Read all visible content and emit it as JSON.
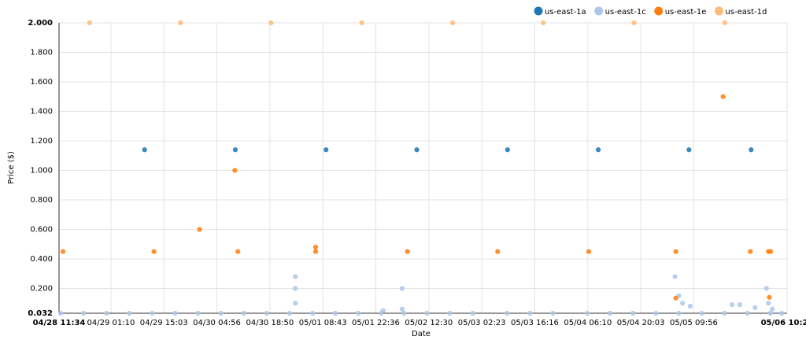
{
  "chart_data": {
    "type": "scatter",
    "x_label": "Date",
    "y_label": "Price ($)",
    "xlim": [
      "04/28 11:34",
      "05/06 10:24"
    ],
    "xticks": [
      "04/28 11:34",
      "04/29 01:10",
      "04/29 15:03",
      "04/30 04:56",
      "04/30 18:50",
      "05/01 08:43",
      "05/01 22:36",
      "05/02 12:30",
      "05/03 02:23",
      "05/03 16:16",
      "05/04 06:10",
      "05/04 20:03",
      "05/05 09:56",
      "05/06 10:24"
    ],
    "ylim": [
      0.032,
      2
    ],
    "yticks": [
      0.032,
      {
        "value": 0.2,
        "label": "0.200"
      },
      {
        "value": 0.4,
        "label": "0.400"
      },
      {
        "value": 0.6,
        "label": "0.600"
      },
      {
        "value": 0.8,
        "label": "0.800"
      },
      {
        "value": 1,
        "label": "1.000"
      },
      {
        "value": 1.2,
        "label": "1.200"
      },
      {
        "value": 1.4,
        "label": "1.400"
      },
      {
        "value": 1.6,
        "label": "1.600"
      },
      {
        "value": 1.8,
        "label": "1.800"
      },
      {
        "value": 2,
        "label": "2.000"
      }
    ],
    "grid": true,
    "legend": "top-right",
    "series": [
      {
        "name": "us-east-1a",
        "color": "#1f77b4",
        "x": [
          "04/29 09:59",
          "04/30 09:46",
          "05/01 09:33",
          "05/02 09:20",
          "05/03 09:07",
          "05/04 08:54",
          "05/05 08:41",
          "05/06 00:58"
        ],
        "values": [
          1.14,
          1.14,
          1.14,
          1.14,
          1.14,
          1.14,
          1.14,
          1.14
        ]
      },
      {
        "name": "us-east-1c",
        "color": "#aec7e8",
        "x": [
          "04/28 12:00",
          "04/28 18:00",
          "04/29 00:00",
          "04/29 06:00",
          "04/29 12:00",
          "04/29 18:00",
          "04/30 00:00",
          "04/30 06:00",
          "04/30 12:00",
          "04/30 18:00",
          "05/01 00:00",
          "05/01 06:00",
          "05/01 12:00",
          "05/01 18:00",
          "05/02 00:00",
          "05/02 06:00",
          "05/02 12:00",
          "05/02 18:00",
          "05/03 00:00",
          "05/03 09:00",
          "05/03 15:00",
          "05/03 21:00",
          "05/04 06:00",
          "05/04 12:00",
          "05/04 18:00",
          "05/05 00:00",
          "05/05 06:00",
          "05/05 12:00",
          "05/05 18:00",
          "05/06 00:00",
          "05/06 06:00",
          "05/06 09:00",
          "05/01 01:30",
          "05/01 01:30",
          "05/01 01:30",
          "05/02 05:30",
          "05/02 05:30",
          "05/02 00:30",
          "05/05 05:00",
          "05/05 06:00",
          "05/05 07:00",
          "05/05 09:00",
          "05/05 20:00",
          "05/05 22:00",
          "05/06 02:00",
          "05/06 05:00",
          "05/06 05:30",
          "05/06 06:30"
        ],
        "values": [
          0.032,
          0.032,
          0.032,
          0.032,
          0.032,
          0.032,
          0.032,
          0.032,
          0.032,
          0.032,
          0.032,
          0.032,
          0.032,
          0.032,
          0.032,
          0.032,
          0.032,
          0.032,
          0.032,
          0.032,
          0.032,
          0.032,
          0.032,
          0.032,
          0.032,
          0.032,
          0.032,
          0.032,
          0.032,
          0.032,
          0.032,
          0.032,
          0.28,
          0.2,
          0.1,
          0.2,
          0.06,
          0.05,
          0.28,
          0.15,
          0.1,
          0.08,
          0.09,
          0.09,
          0.07,
          0.2,
          0.1,
          0.06
        ]
      },
      {
        "name": "us-east-1e",
        "color": "#ff7f0e",
        "x": [
          "04/28 12:36",
          "04/29 12:27",
          "04/30 00:23",
          "04/30 09:38",
          "04/30 10:27",
          "05/01 06:49",
          "05/01 06:49",
          "05/02 06:53",
          "05/03 06:32",
          "05/04 06:24",
          "05/05 05:13",
          "05/05 05:13",
          "05/05 17:37",
          "05/06 00:45",
          "05/06 05:29",
          "05/06 06:05",
          "05/06 05:45"
        ],
        "values": [
          0.45,
          0.45,
          0.6,
          1.0,
          0.45,
          0.48,
          0.45,
          0.45,
          0.45,
          0.45,
          0.45,
          0.135,
          1.5,
          0.45,
          0.45,
          0.45,
          0.14
        ]
      },
      {
        "name": "us-east-1d",
        "color": "#ffbb78",
        "x": [
          "04/28 19:35",
          "04/29 19:22",
          "04/30 19:09",
          "05/01 18:56",
          "05/02 18:43",
          "05/03 18:30",
          "05/04 18:17",
          "05/05 18:04"
        ],
        "values": [
          2,
          2,
          2,
          2,
          2,
          2,
          2,
          2
        ]
      }
    ]
  }
}
